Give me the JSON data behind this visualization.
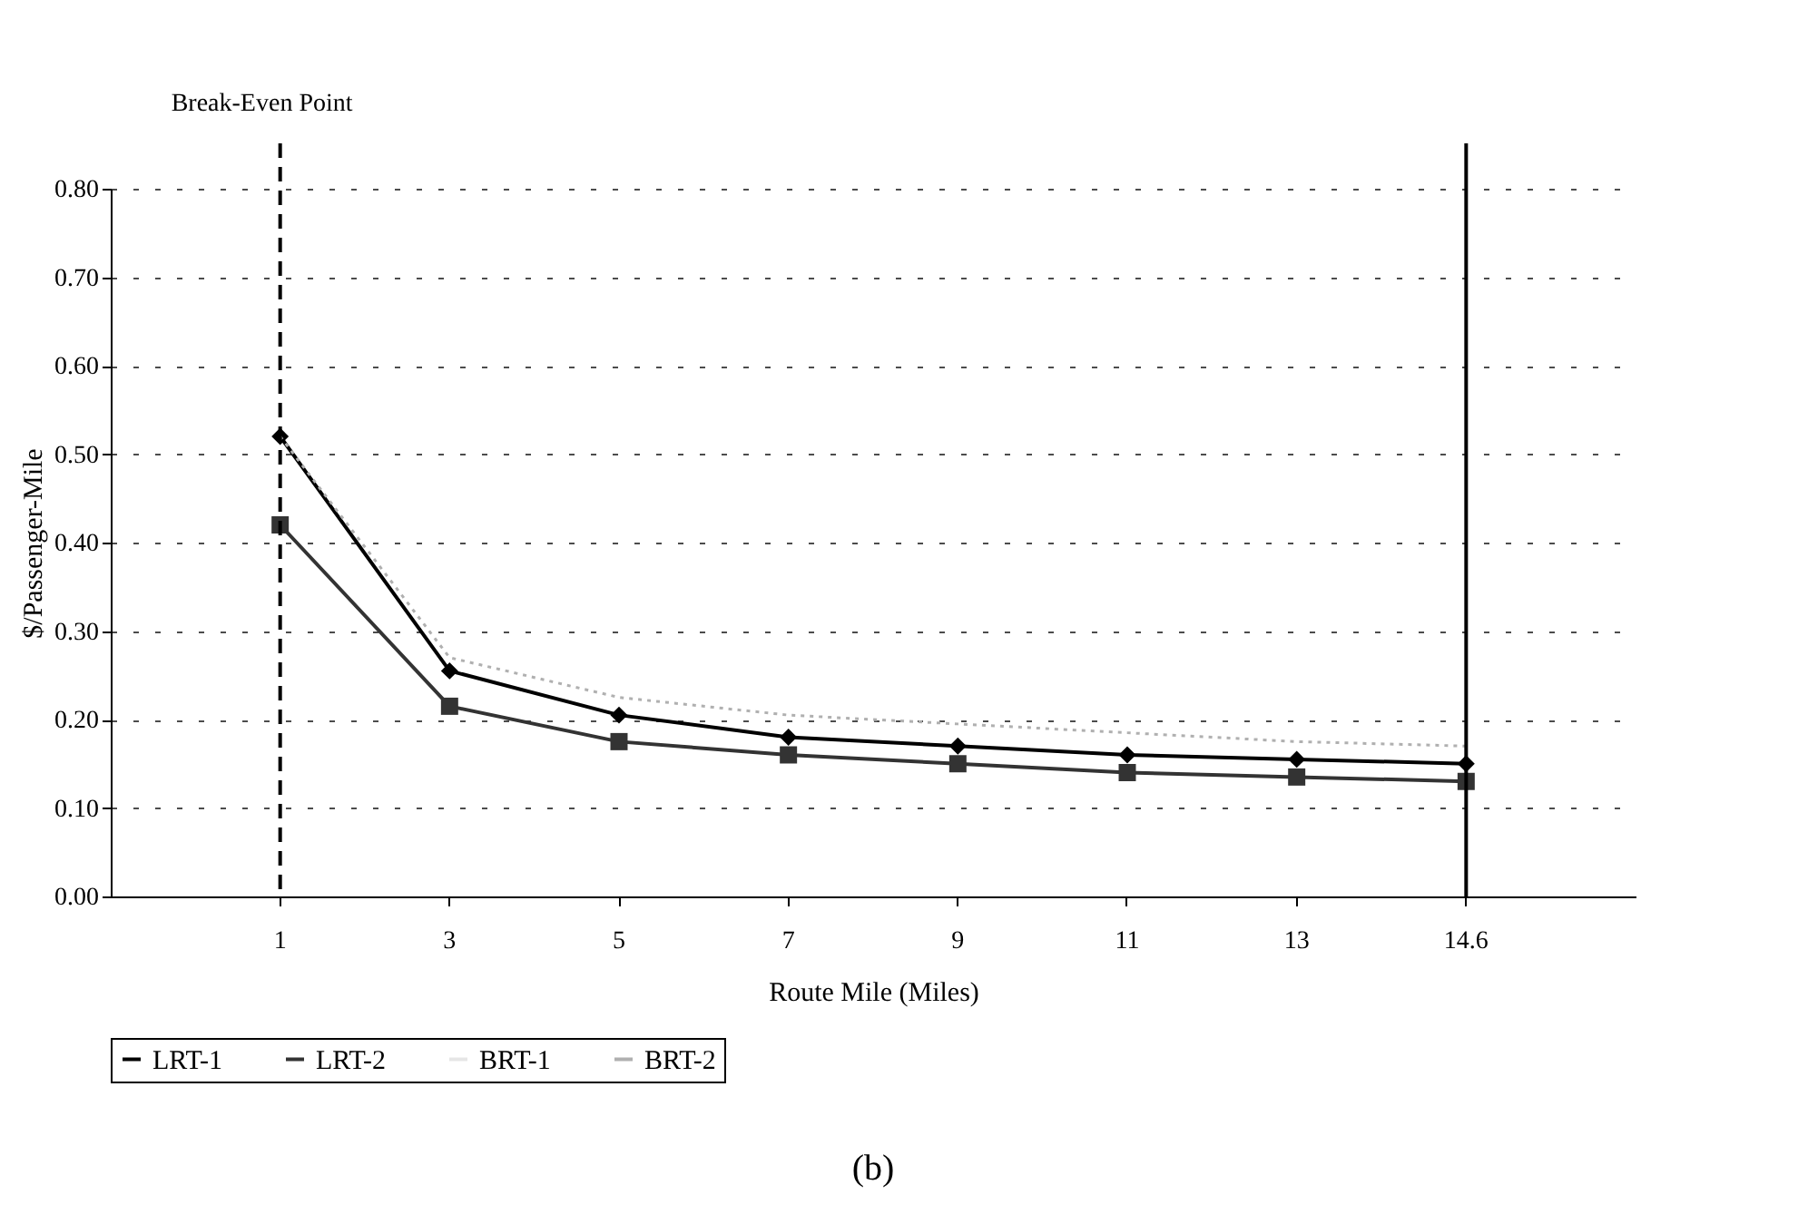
{
  "chart_data": {
    "type": "line",
    "xlabel": "Route Mile (Miles)",
    "ylabel": "$/Passenger-Mile",
    "categories": [
      "1",
      "3",
      "5",
      "7",
      "9",
      "11",
      "13",
      "14.6"
    ],
    "series": [
      {
        "name": "LRT-1",
        "color": "#000000",
        "marker": "diamond",
        "line_style": "solid",
        "values": [
          0.52,
          0.255,
          0.205,
          0.18,
          0.17,
          0.16,
          0.155,
          0.15
        ]
      },
      {
        "name": "LRT-2",
        "color": "#333333",
        "marker": "square",
        "line_style": "solid",
        "values": [
          0.42,
          0.215,
          0.175,
          0.16,
          0.15,
          0.14,
          0.135,
          0.13
        ]
      },
      {
        "name": "BRT-1",
        "color": "#e6e6e6",
        "marker": "none",
        "line_style": "solid",
        "values": [
          null,
          null,
          null,
          null,
          null,
          null,
          null,
          null
        ]
      },
      {
        "name": "BRT-2",
        "color": "#b0b0b0",
        "marker": "none",
        "line_style": "dotted",
        "values": [
          0.52,
          0.27,
          0.225,
          0.205,
          0.195,
          0.185,
          0.175,
          0.17
        ]
      }
    ],
    "ylim": [
      0,
      0.8
    ],
    "yticks": [
      {
        "value": 0,
        "label": "0.00"
      },
      {
        "value": 0.1,
        "label": "0.10"
      },
      {
        "value": 0.2,
        "label": "0.20"
      },
      {
        "value": 0.3,
        "label": "0.30"
      },
      {
        "value": 0.4,
        "label": "0.40"
      },
      {
        "value": 0.5,
        "label": "0.50"
      },
      {
        "value": 0.6,
        "label": "0.60"
      },
      {
        "value": 0.7,
        "label": "0.70"
      },
      {
        "value": 0.8,
        "label": "0.80"
      }
    ],
    "ref_lines": [
      {
        "axis": "x",
        "value": "1",
        "label": "Break-Even Point",
        "color": "#000000",
        "line_style": "dashed"
      },
      {
        "axis": "x",
        "value": "14.6",
        "label": null,
        "color": "#000000",
        "line_style": "solid"
      }
    ],
    "grid": "y",
    "legend": "bottom",
    "annotations": [
      "(b)"
    ]
  }
}
